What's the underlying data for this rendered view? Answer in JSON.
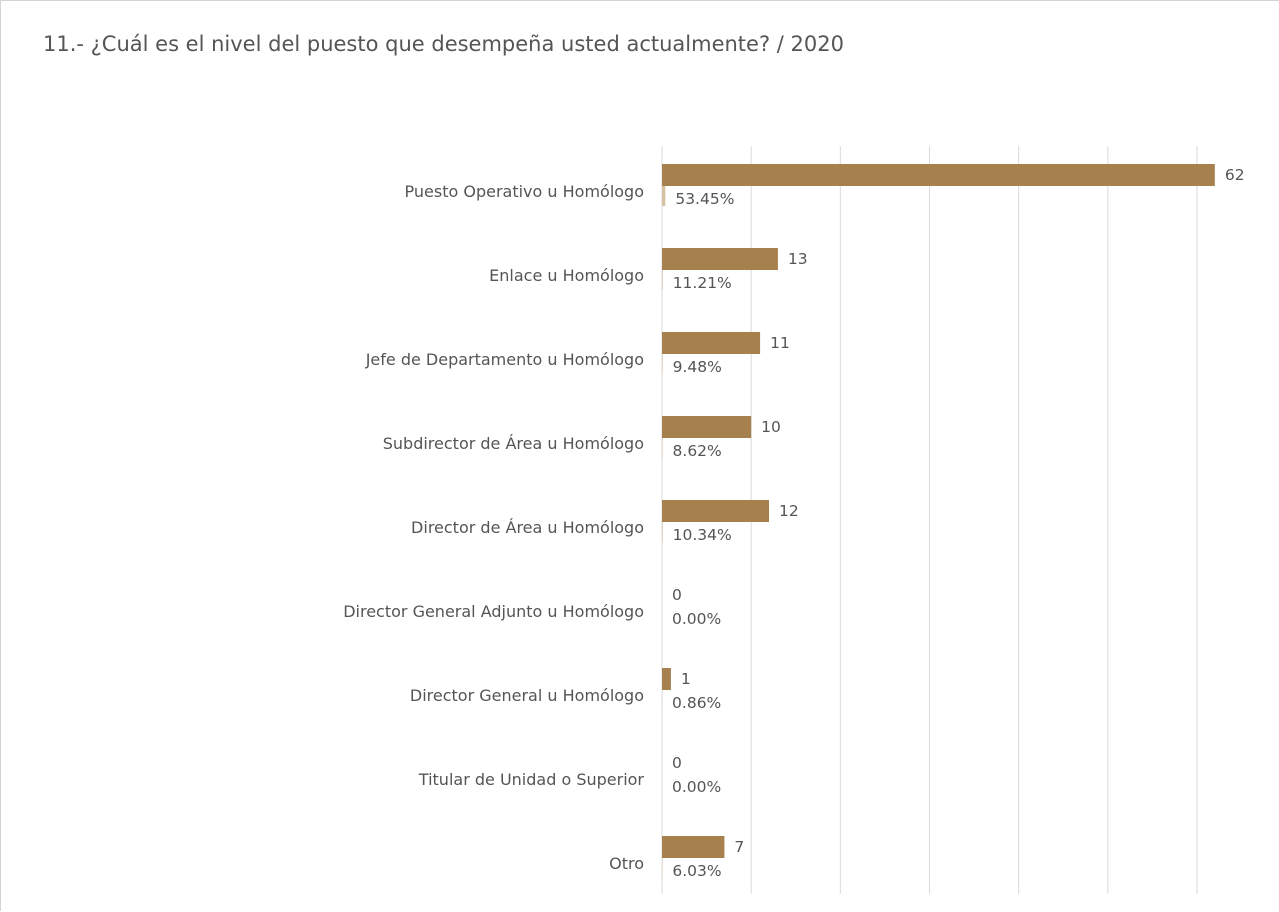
{
  "chart_data": {
    "type": "bar",
    "orientation": "horizontal",
    "title": "11.- ¿Cuál es el nivel del puesto que desempeña usted actualmente?  /  2020",
    "categories": [
      "Puesto Operativo u Homólogo",
      "Enlace u Homólogo",
      "Jefe de Departamento u Homólogo",
      "Subdirector de Área u Homólogo",
      "Director de Área u Homólogo",
      "Director General Adjunto u Homólogo",
      "Director General u Homólogo",
      "Titular de Unidad o Superior",
      "Otro"
    ],
    "series": [
      {
        "values": [
          62,
          13,
          11,
          10,
          12,
          0,
          1,
          0,
          7
        ],
        "labels": [
          "62",
          "13",
          "11",
          "10",
          "12",
          "0",
          "1",
          "0",
          "7"
        ],
        "color": "#a6814d"
      },
      {
        "values": [
          53.45,
          11.21,
          9.48,
          8.62,
          10.34,
          0.0,
          0.86,
          0.0,
          6.03
        ],
        "labels": [
          "53.45%",
          "11.21%",
          "9.48%",
          "8.62%",
          "10.34%",
          "0.00%",
          "0.86%",
          "0.00%",
          "6.03%"
        ],
        "color": "#d6c1a3"
      }
    ],
    "xlim": [
      0,
      70
    ],
    "x_major_step": 10,
    "grid": "vertical",
    "legend": "none",
    "colors": {
      "grid": "#d9d9d9",
      "text": "#555555"
    }
  }
}
